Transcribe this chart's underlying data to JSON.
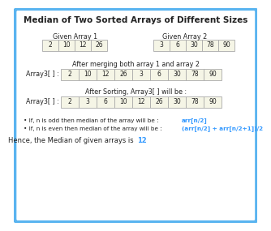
{
  "title": "Median of Two Sorted Arrays of Different Sizes",
  "bg_color": "#ffffff",
  "border_color": "#5ab4f0",
  "array1_label": "Given Array 1",
  "array2_label": "Given Array 2",
  "array1": [
    2,
    10,
    12,
    26
  ],
  "array2": [
    3,
    6,
    30,
    78,
    90
  ],
  "merged_label": "After merging both array 1 and array 2",
  "merged_prefix": "Array3[ ] :",
  "merged": [
    2,
    10,
    12,
    26,
    3,
    6,
    30,
    78,
    90
  ],
  "sorted_label": "After Sorting, Array3[ ] will be :",
  "sorted_prefix": "Array3[ ] :",
  "sorted": [
    2,
    3,
    6,
    10,
    12,
    26,
    30,
    78,
    90
  ],
  "cell_color_normal": "#f5f5e6",
  "cell_color_border": "#aaaaaa",
  "text_color": "#222222",
  "blue_color": "#3399ff",
  "bullet1_black": "• If, n is odd then median of the array will be :  ",
  "bullet1_blue": "arr[n/2]",
  "bullet2_black": "• If, n is even then median of the array will be :  ",
  "bullet2_blue": "(arr[n/2] + arr[n/2+1])/2",
  "conclusion_black": "Hence, the Median of given arrays is ",
  "conclusion_blue": "12",
  "title_fontsize": 7.5,
  "label_fontsize": 5.8,
  "cell_fontsize": 5.5,
  "note_fontsize": 5.2,
  "concl_fontsize": 6.0
}
